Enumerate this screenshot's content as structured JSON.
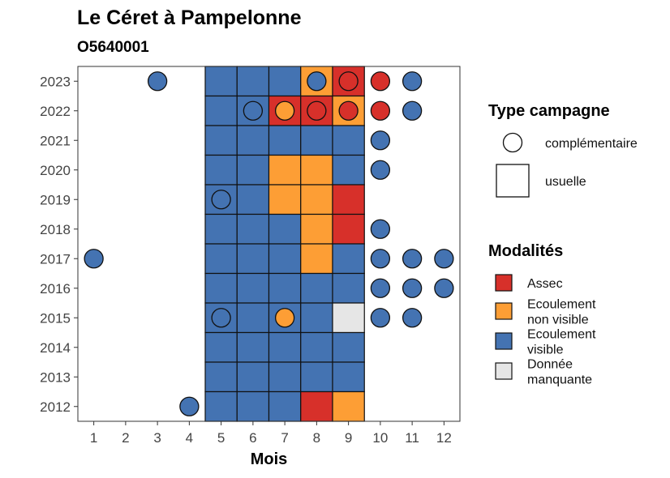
{
  "chart_data": {
    "type": "heatmap",
    "title": "Le Céret à Pampelonne",
    "subtitle": "O5640001",
    "xlabel": "Mois",
    "ylabel": "",
    "x_ticks": [
      1,
      2,
      3,
      4,
      5,
      6,
      7,
      8,
      9,
      10,
      11,
      12
    ],
    "y_ticks": [
      2012,
      2013,
      2014,
      2015,
      2016,
      2017,
      2018,
      2019,
      2020,
      2021,
      2022,
      2023
    ],
    "grid": false,
    "colors": {
      "Assec": "#d7302a",
      "Ecoulement non visible": "#fd9e35",
      "Ecoulement visible": "#4473b2",
      "Donnée manquante": "#e6e6e6"
    },
    "usuelle_cells": [
      {
        "year": 2023,
        "month": 5,
        "value": "Ecoulement visible"
      },
      {
        "year": 2023,
        "month": 6,
        "value": "Ecoulement visible"
      },
      {
        "year": 2023,
        "month": 7,
        "value": "Ecoulement visible"
      },
      {
        "year": 2023,
        "month": 8,
        "value": "Ecoulement non visible"
      },
      {
        "year": 2023,
        "month": 9,
        "value": "Assec"
      },
      {
        "year": 2022,
        "month": 5,
        "value": "Ecoulement visible"
      },
      {
        "year": 2022,
        "month": 6,
        "value": "Ecoulement visible"
      },
      {
        "year": 2022,
        "month": 7,
        "value": "Assec"
      },
      {
        "year": 2022,
        "month": 8,
        "value": "Assec"
      },
      {
        "year": 2022,
        "month": 9,
        "value": "Ecoulement non visible"
      },
      {
        "year": 2021,
        "month": 5,
        "value": "Ecoulement visible"
      },
      {
        "year": 2021,
        "month": 6,
        "value": "Ecoulement visible"
      },
      {
        "year": 2021,
        "month": 7,
        "value": "Ecoulement visible"
      },
      {
        "year": 2021,
        "month": 8,
        "value": "Ecoulement visible"
      },
      {
        "year": 2021,
        "month": 9,
        "value": "Ecoulement visible"
      },
      {
        "year": 2020,
        "month": 5,
        "value": "Ecoulement visible"
      },
      {
        "year": 2020,
        "month": 6,
        "value": "Ecoulement visible"
      },
      {
        "year": 2020,
        "month": 7,
        "value": "Ecoulement non visible"
      },
      {
        "year": 2020,
        "month": 8,
        "value": "Ecoulement non visible"
      },
      {
        "year": 2020,
        "month": 9,
        "value": "Ecoulement visible"
      },
      {
        "year": 2019,
        "month": 5,
        "value": "Ecoulement visible"
      },
      {
        "year": 2019,
        "month": 6,
        "value": "Ecoulement visible"
      },
      {
        "year": 2019,
        "month": 7,
        "value": "Ecoulement non visible"
      },
      {
        "year": 2019,
        "month": 8,
        "value": "Ecoulement non visible"
      },
      {
        "year": 2019,
        "month": 9,
        "value": "Assec"
      },
      {
        "year": 2018,
        "month": 5,
        "value": "Ecoulement visible"
      },
      {
        "year": 2018,
        "month": 6,
        "value": "Ecoulement visible"
      },
      {
        "year": 2018,
        "month": 7,
        "value": "Ecoulement visible"
      },
      {
        "year": 2018,
        "month": 8,
        "value": "Ecoulement non visible"
      },
      {
        "year": 2018,
        "month": 9,
        "value": "Assec"
      },
      {
        "year": 2017,
        "month": 5,
        "value": "Ecoulement visible"
      },
      {
        "year": 2017,
        "month": 6,
        "value": "Ecoulement visible"
      },
      {
        "year": 2017,
        "month": 7,
        "value": "Ecoulement visible"
      },
      {
        "year": 2017,
        "month": 8,
        "value": "Ecoulement non visible"
      },
      {
        "year": 2017,
        "month": 9,
        "value": "Ecoulement visible"
      },
      {
        "year": 2016,
        "month": 5,
        "value": "Ecoulement visible"
      },
      {
        "year": 2016,
        "month": 6,
        "value": "Ecoulement visible"
      },
      {
        "year": 2016,
        "month": 7,
        "value": "Ecoulement visible"
      },
      {
        "year": 2016,
        "month": 8,
        "value": "Ecoulement visible"
      },
      {
        "year": 2016,
        "month": 9,
        "value": "Ecoulement visible"
      },
      {
        "year": 2015,
        "month": 5,
        "value": "Ecoulement visible"
      },
      {
        "year": 2015,
        "month": 6,
        "value": "Ecoulement visible"
      },
      {
        "year": 2015,
        "month": 7,
        "value": "Ecoulement visible"
      },
      {
        "year": 2015,
        "month": 8,
        "value": "Ecoulement visible"
      },
      {
        "year": 2015,
        "month": 9,
        "value": "Donnée manquante"
      },
      {
        "year": 2014,
        "month": 5,
        "value": "Ecoulement visible"
      },
      {
        "year": 2014,
        "month": 6,
        "value": "Ecoulement visible"
      },
      {
        "year": 2014,
        "month": 7,
        "value": "Ecoulement visible"
      },
      {
        "year": 2014,
        "month": 8,
        "value": "Ecoulement visible"
      },
      {
        "year": 2014,
        "month": 9,
        "value": "Ecoulement visible"
      },
      {
        "year": 2013,
        "month": 5,
        "value": "Ecoulement visible"
      },
      {
        "year": 2013,
        "month": 6,
        "value": "Ecoulement visible"
      },
      {
        "year": 2013,
        "month": 7,
        "value": "Ecoulement visible"
      },
      {
        "year": 2013,
        "month": 8,
        "value": "Ecoulement visible"
      },
      {
        "year": 2013,
        "month": 9,
        "value": "Ecoulement visible"
      },
      {
        "year": 2012,
        "month": 5,
        "value": "Ecoulement visible"
      },
      {
        "year": 2012,
        "month": 6,
        "value": "Ecoulement visible"
      },
      {
        "year": 2012,
        "month": 7,
        "value": "Ecoulement visible"
      },
      {
        "year": 2012,
        "month": 8,
        "value": "Assec"
      },
      {
        "year": 2012,
        "month": 9,
        "value": "Ecoulement non visible"
      }
    ],
    "complementaire_points": [
      {
        "year": 2023,
        "month": 3,
        "value": "Ecoulement visible"
      },
      {
        "year": 2023,
        "month": 8,
        "value": "Ecoulement visible"
      },
      {
        "year": 2023,
        "month": 9,
        "value": "Assec"
      },
      {
        "year": 2023,
        "month": 10,
        "value": "Assec"
      },
      {
        "year": 2023,
        "month": 11,
        "value": "Ecoulement visible"
      },
      {
        "year": 2022,
        "month": 6,
        "value": "Ecoulement visible"
      },
      {
        "year": 2022,
        "month": 7,
        "value": "Ecoulement non visible"
      },
      {
        "year": 2022,
        "month": 8,
        "value": "Assec"
      },
      {
        "year": 2022,
        "month": 9,
        "value": "Assec"
      },
      {
        "year": 2022,
        "month": 10,
        "value": "Assec"
      },
      {
        "year": 2022,
        "month": 11,
        "value": "Ecoulement visible"
      },
      {
        "year": 2021,
        "month": 10,
        "value": "Ecoulement visible"
      },
      {
        "year": 2020,
        "month": 10,
        "value": "Ecoulement visible"
      },
      {
        "year": 2019,
        "month": 5,
        "value": "Ecoulement visible"
      },
      {
        "year": 2018,
        "month": 10,
        "value": "Ecoulement visible"
      },
      {
        "year": 2017,
        "month": 1,
        "value": "Ecoulement visible"
      },
      {
        "year": 2017,
        "month": 10,
        "value": "Ecoulement visible"
      },
      {
        "year": 2017,
        "month": 11,
        "value": "Ecoulement visible"
      },
      {
        "year": 2017,
        "month": 12,
        "value": "Ecoulement visible"
      },
      {
        "year": 2016,
        "month": 10,
        "value": "Ecoulement visible"
      },
      {
        "year": 2016,
        "month": 11,
        "value": "Ecoulement visible"
      },
      {
        "year": 2016,
        "month": 12,
        "value": "Ecoulement visible"
      },
      {
        "year": 2015,
        "month": 5,
        "value": "Ecoulement visible"
      },
      {
        "year": 2015,
        "month": 7,
        "value": "Ecoulement non visible"
      },
      {
        "year": 2015,
        "month": 10,
        "value": "Ecoulement visible"
      },
      {
        "year": 2015,
        "month": 11,
        "value": "Ecoulement visible"
      },
      {
        "year": 2012,
        "month": 4,
        "value": "Ecoulement visible"
      }
    ],
    "legend": {
      "placement": "right",
      "type_title": "Type campagne",
      "type_items": [
        {
          "shape": "circle",
          "label": "complémentaire"
        },
        {
          "shape": "square",
          "label": "usuelle"
        }
      ],
      "modalite_title": "Modalités",
      "modalite_items": [
        {
          "key": "Assec",
          "lines": [
            "Assec"
          ]
        },
        {
          "key": "Ecoulement non visible",
          "lines": [
            "Ecoulement",
            "non visible"
          ]
        },
        {
          "key": "Ecoulement visible",
          "lines": [
            "Ecoulement",
            "visible"
          ]
        },
        {
          "key": "Donnée manquante",
          "lines": [
            "Donnée",
            "manquante"
          ]
        }
      ]
    }
  }
}
